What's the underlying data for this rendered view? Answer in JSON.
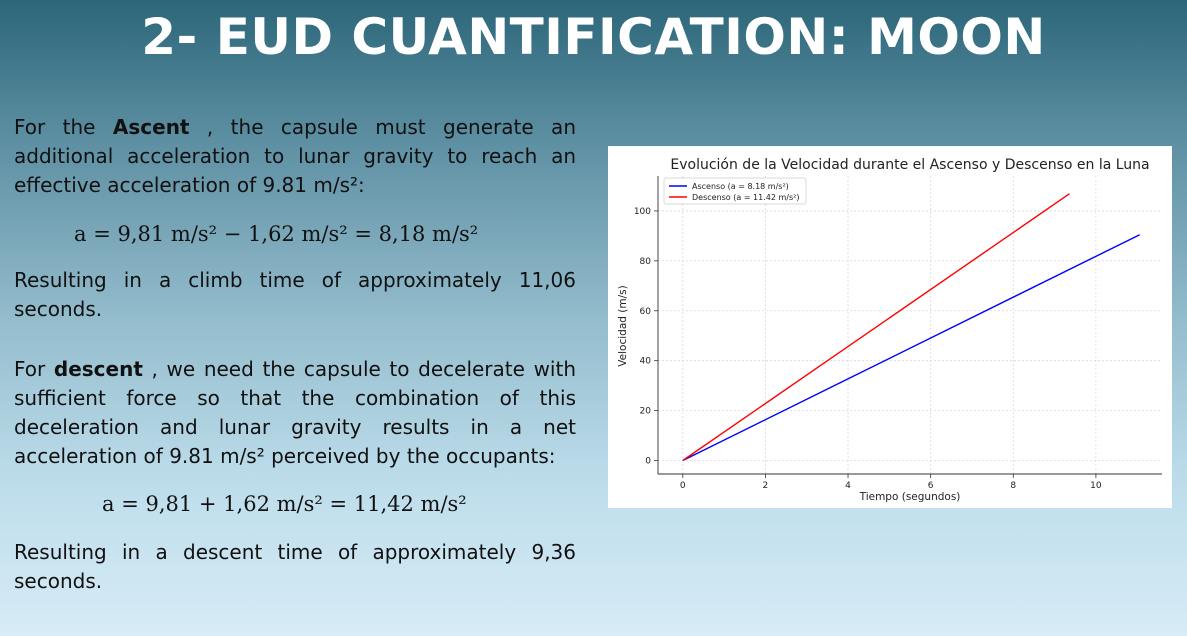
{
  "slide": {
    "title": "2- EUD CUANTIFICATION: MOON"
  },
  "ascent": {
    "intro_prefix": "For the ",
    "intro_bold": "Ascent",
    "intro_suffix": " , the capsule must generate an additional acceleration to lunar gravity to reach an effective acceleration of 9.81 m/s²:",
    "equation": "a = 9,81  m/s² − 1,62  m/s² = 8,18  m/s²",
    "result": "Resulting in a climb time of approximately 11,06 seconds."
  },
  "descent": {
    "intro_prefix": "For ",
    "intro_bold": "descent",
    "intro_suffix": " , we need the capsule to decelerate with sufficient force so that the combination of this deceleration and lunar gravity results in a net acceleration of 9.81 m/s² perceived by the occupants:",
    "equation": "a = 9,81 + 1,62  m/s² = 11,42  m/s²",
    "result": "Resulting in a descent time of approximately 9,36 seconds."
  },
  "chart_data": {
    "type": "line",
    "title": "Evolución de la Velocidad durante el Ascenso y Descenso en la Luna",
    "xlabel": "Tiempo (segundos)",
    "ylabel": "Velocidad (m/s)",
    "xlim": [
      -0.6,
      11.6
    ],
    "ylim": [
      -5.4,
      114
    ],
    "xticks": [
      0,
      2,
      4,
      6,
      8,
      10
    ],
    "yticks": [
      0,
      20,
      40,
      60,
      80,
      100
    ],
    "grid": true,
    "legend_position": "top-left",
    "series": [
      {
        "name": "Ascenso (a = 8.18 m/s²)",
        "color": "#0000ff",
        "x": [
          0,
          11.06
        ],
        "y": [
          0,
          90.47
        ]
      },
      {
        "name": "Descenso (a = 11.42 m/s²)",
        "color": "#ff0000",
        "x": [
          0,
          9.36
        ],
        "y": [
          0,
          106.89
        ]
      }
    ]
  }
}
